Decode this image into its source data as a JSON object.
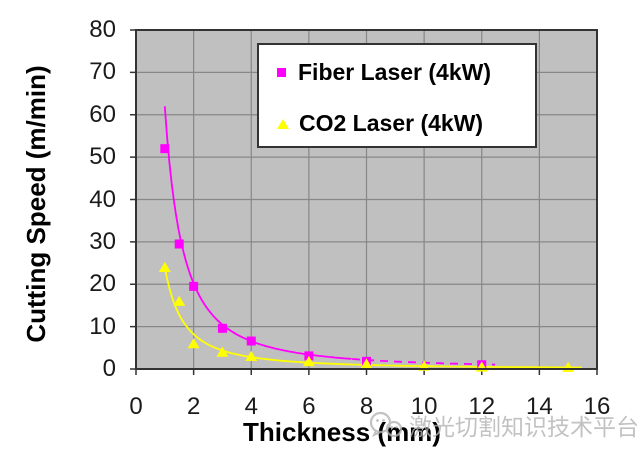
{
  "watermark": {
    "icon": "wechat-logo",
    "text": "激光切割知识技术平台",
    "color": "#b3b3b3"
  },
  "chart_data": {
    "type": "scatter",
    "title": "",
    "xlabel": "Thickness (mm)",
    "ylabel": "Cutting Speed (m/min)",
    "xlim": [
      0,
      16
    ],
    "ylim": [
      0,
      80
    ],
    "x_ticks": [
      0,
      2,
      4,
      6,
      8,
      10,
      12,
      14,
      16
    ],
    "y_ticks": [
      0,
      10,
      20,
      30,
      40,
      50,
      60,
      70,
      80
    ],
    "grid": true,
    "plot_bg": "#c0c0c0",
    "grid_color": "#878787",
    "axis_color": "#333333",
    "legend_position": "top-right-inside",
    "series": [
      {
        "name": "Fiber Laser (4kW)",
        "color": "#ff00ff",
        "marker": "square",
        "points": [
          [
            1,
            52
          ],
          [
            1.5,
            29.5
          ],
          [
            2,
            19.5
          ],
          [
            3,
            9.6
          ],
          [
            4,
            6.6
          ],
          [
            6,
            3.1
          ],
          [
            8,
            1.8
          ],
          [
            12,
            1.0
          ]
        ],
        "trend": {
          "type": "power",
          "a": 62,
          "b": -1.62,
          "segments": [
            {
              "from": 1,
              "to": 7.5
            },
            {
              "from": 7.5,
              "to": 12.5,
              "dash": "8 6"
            }
          ]
        }
      },
      {
        "name": "CO2 Laser (4kW)",
        "color": "#ffff00",
        "marker": "triangle",
        "points": [
          [
            1,
            24
          ],
          [
            1.5,
            16
          ],
          [
            2,
            6
          ],
          [
            3,
            4
          ],
          [
            4,
            3
          ],
          [
            6,
            1.8
          ],
          [
            8,
            1.2
          ],
          [
            10,
            0.7
          ],
          [
            12,
            0.5
          ],
          [
            15,
            0.4
          ]
        ],
        "trend": {
          "type": "power",
          "a": 24,
          "b": -1.55,
          "segments": [
            {
              "from": 1,
              "to": 15.5
            }
          ]
        }
      }
    ]
  }
}
